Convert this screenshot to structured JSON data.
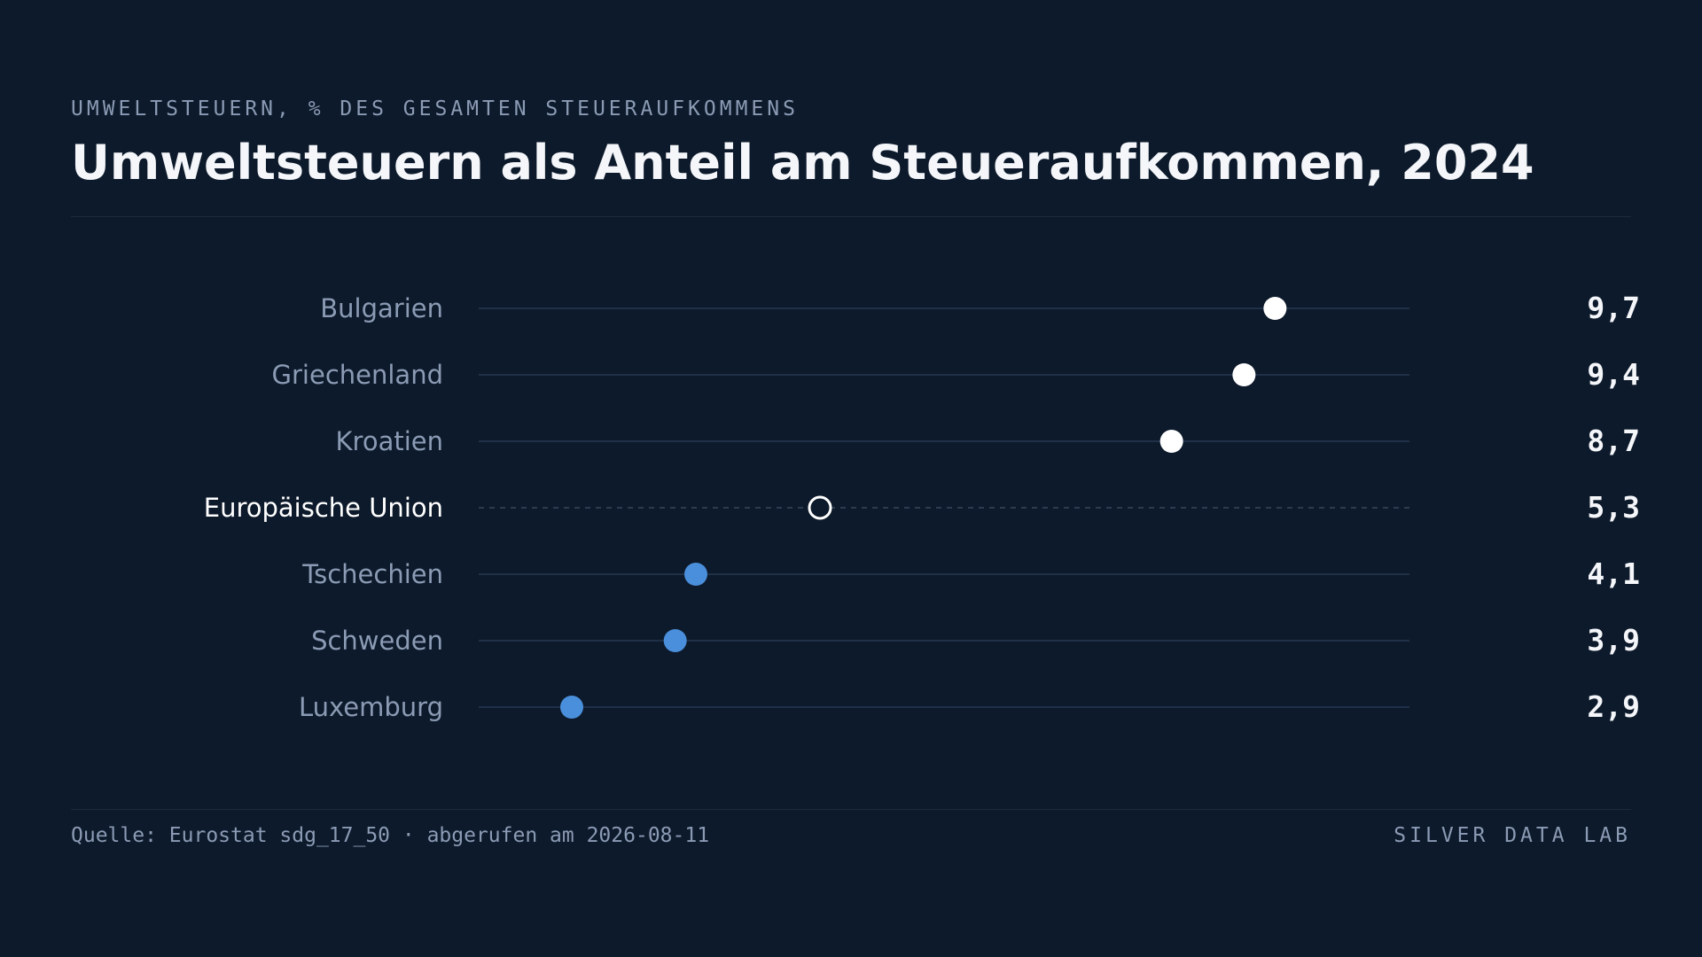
{
  "header": {
    "kicker": "UMWELTSTEUERN, % DES GESAMTEN STEUERAUFKOMMENS",
    "title": "Umweltsteuern als Anteil am Steueraufkommen, 2024"
  },
  "footer": {
    "source": "Quelle: Eurostat sdg_17_50 · abgerufen am 2026-08-11",
    "brand": "SILVER DATA LAB"
  },
  "colors": {
    "background": "#0d1a2b",
    "highlight": "#ffffff",
    "accent": "#4a8fdb",
    "label": "#8b9bb4",
    "reference_label": "#ffffff",
    "track": "#1f3047"
  },
  "chart_data": {
    "type": "scatter",
    "subtype": "dot-plot",
    "title": "Umweltsteuern als Anteil am Steueraufkommen, 2024",
    "subtitle": "UMWELTSTEUERN, % DES GESAMTEN STEUERAUFKOMMENS",
    "xlim": [
      2,
      11
    ],
    "grid": false,
    "legend": "none",
    "categories": [
      "Bulgarien",
      "Griechenland",
      "Kroatien",
      "Europäische Union",
      "Tschechien",
      "Schweden",
      "Luxemburg"
    ],
    "values": [
      9.7,
      9.4,
      8.7,
      5.3,
      4.1,
      3.9,
      2.9
    ],
    "value_labels": [
      "9,7",
      "9,4",
      "8,7",
      "5,3",
      "4,1",
      "3,9",
      "2,9"
    ],
    "marker_style": [
      "highlight",
      "highlight",
      "highlight",
      "reference",
      "accent",
      "accent",
      "accent"
    ]
  }
}
